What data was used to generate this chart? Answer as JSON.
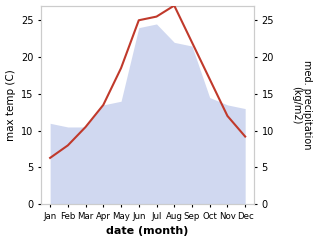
{
  "months": [
    "Jan",
    "Feb",
    "Mar",
    "Apr",
    "May",
    "Jun",
    "Jul",
    "Aug",
    "Sep",
    "Oct",
    "Nov",
    "Dec"
  ],
  "x": [
    0,
    1,
    2,
    3,
    4,
    5,
    6,
    7,
    8,
    9,
    10,
    11
  ],
  "temperature": [
    6.3,
    8.0,
    10.5,
    13.5,
    18.5,
    25.0,
    25.5,
    27.0,
    22.0,
    17.0,
    12.0,
    9.2
  ],
  "precipitation": [
    11.0,
    10.5,
    10.5,
    13.5,
    14.0,
    24.0,
    24.5,
    22.0,
    21.5,
    14.5,
    13.5,
    13.0
  ],
  "temp_color": "#c0392b",
  "precip_fill_color": "#b8c4e8",
  "precip_fill_alpha": 0.65,
  "ylabel_left": "max temp (C)",
  "ylabel_right": "med. precipitation\n(kg/m2)",
  "xlabel": "date (month)",
  "ylim": [
    0,
    27
  ],
  "yticks": [
    0,
    5,
    10,
    15,
    20,
    25
  ],
  "background_color": "#ffffff"
}
